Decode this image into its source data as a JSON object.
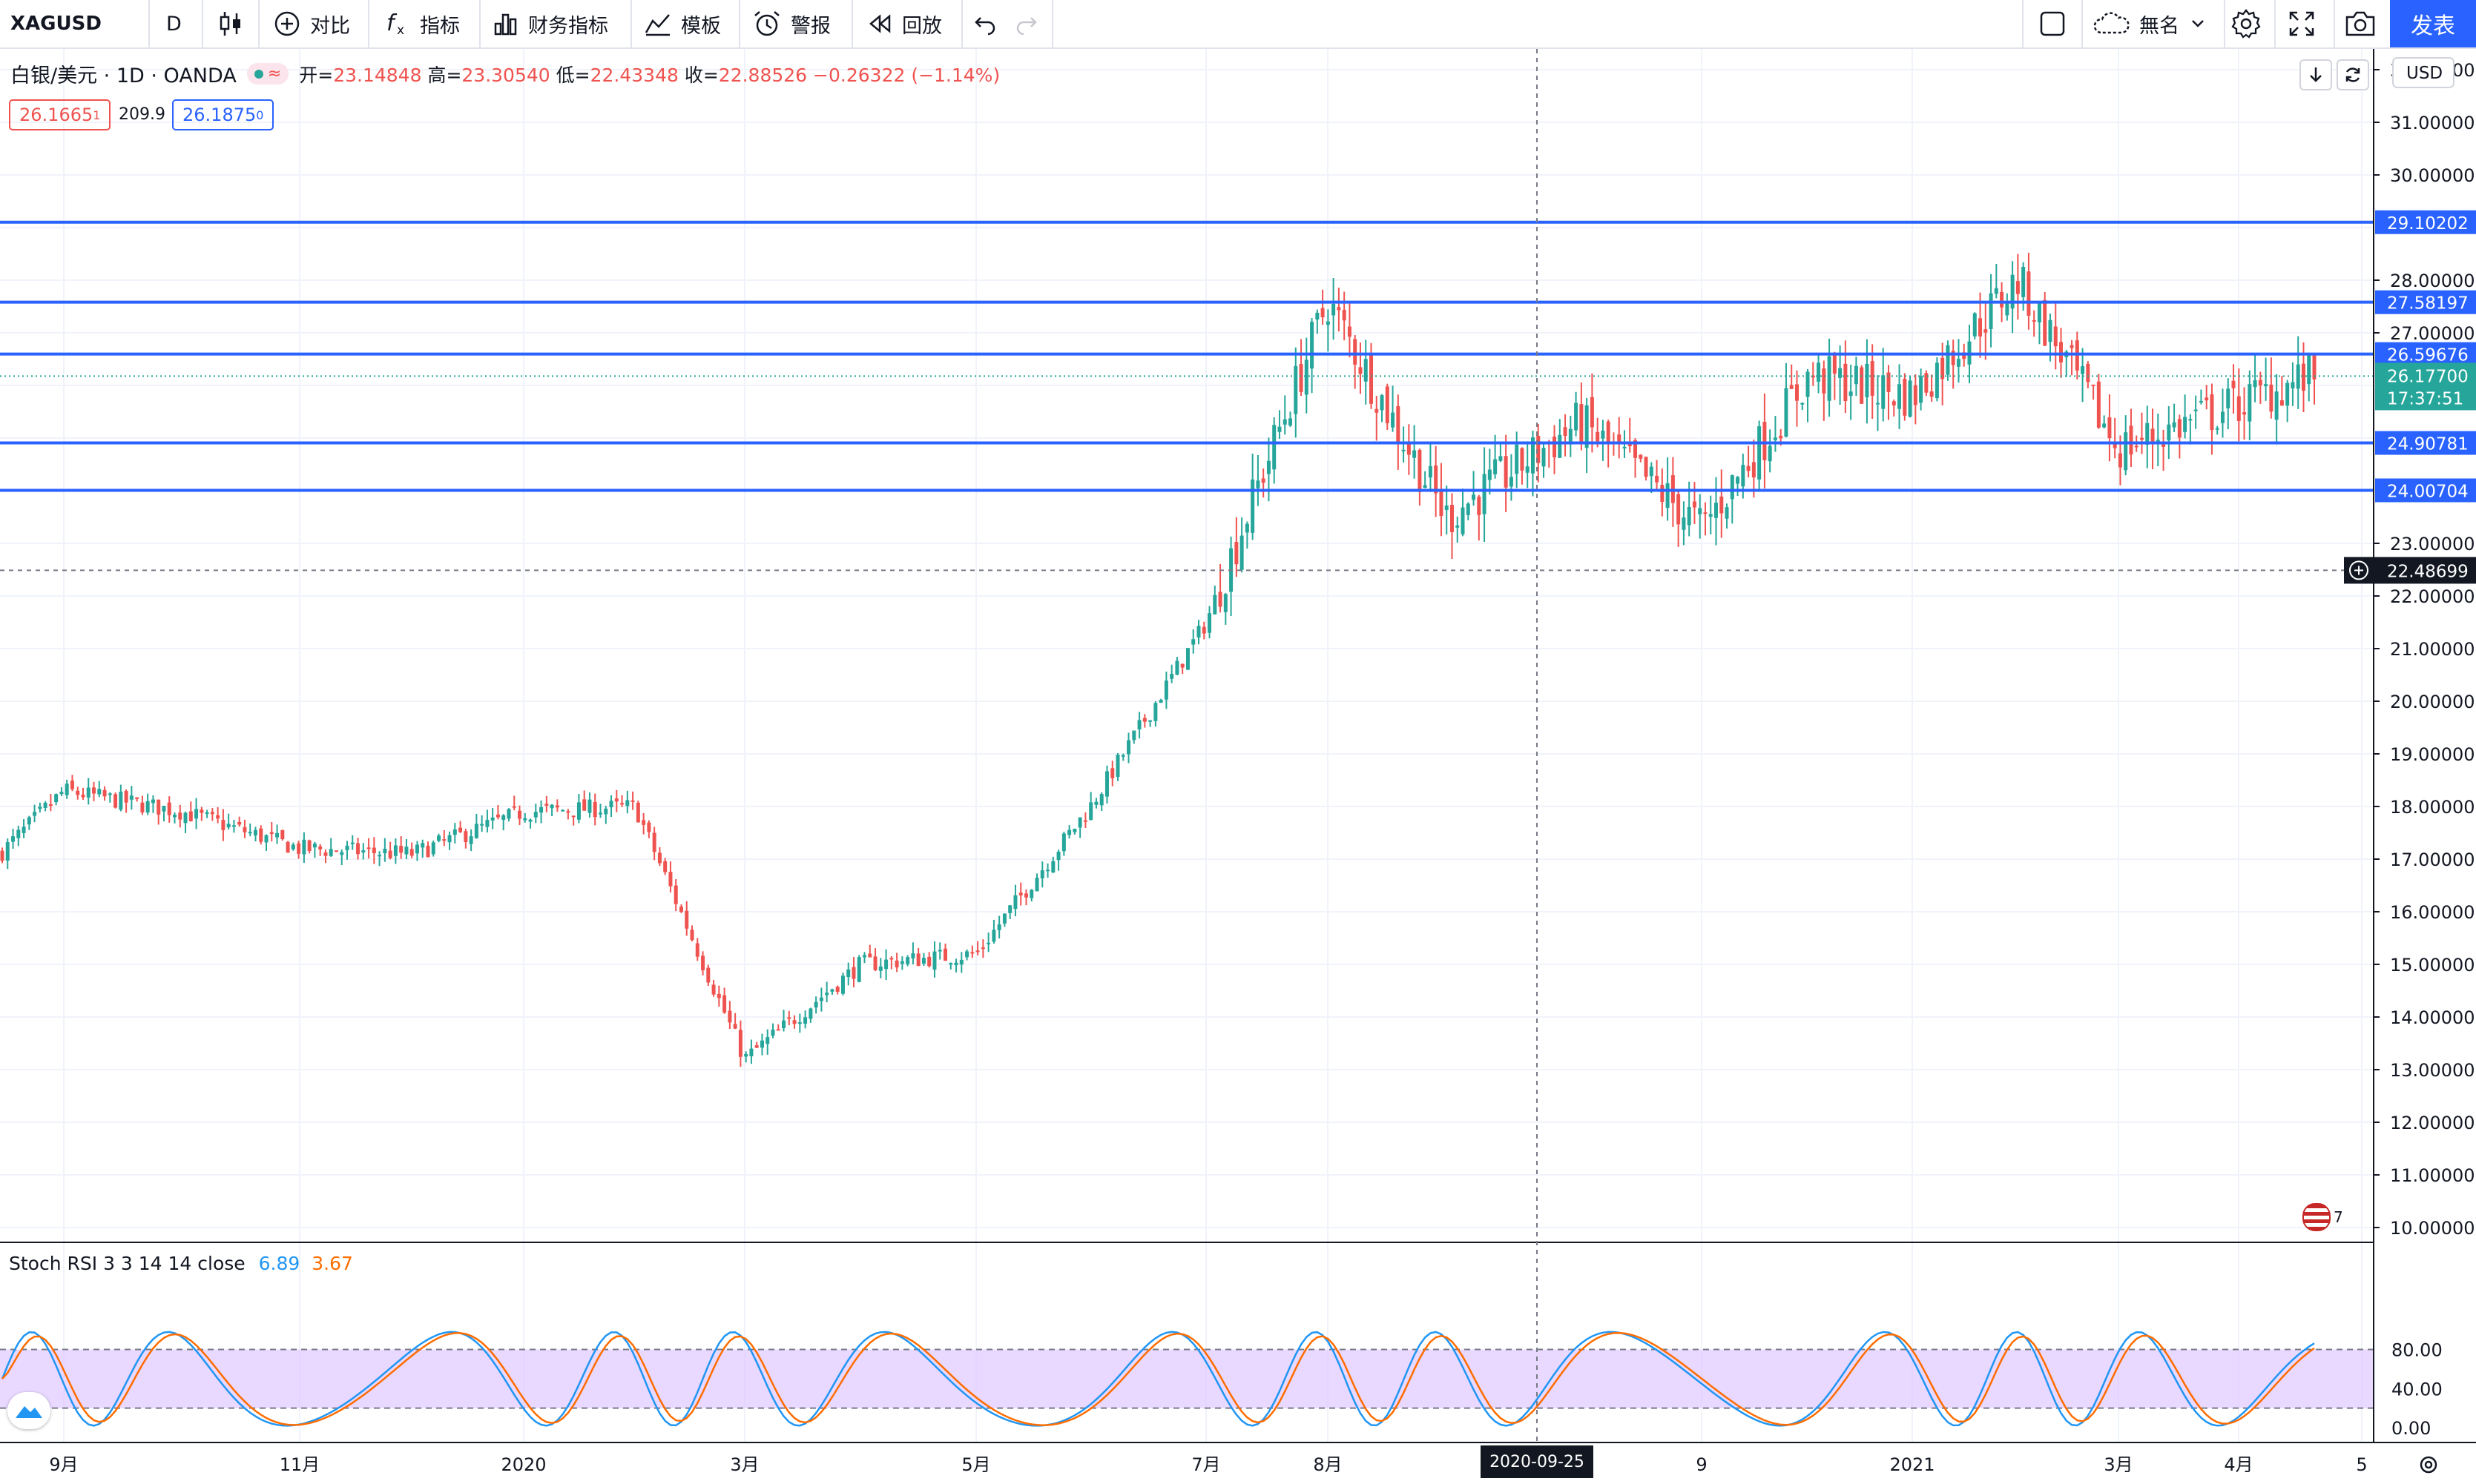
{
  "toolbar": {
    "symbol": "XAGUSD",
    "interval": "D",
    "compare_label": "对比",
    "indicators_label": "指标",
    "financials_label": "财务指标",
    "templates_label": "模板",
    "alert_label": "警报",
    "replay_label": "回放",
    "layout_name": "無名",
    "publish_label": "发表"
  },
  "legend": {
    "title": "白银/美元 · 1D · OANDA",
    "open_label": "开=",
    "open": "23.14848",
    "high_label": "高=",
    "high": "23.30540",
    "low_label": "低=",
    "low": "22.43348",
    "close_label": "收=",
    "close": "22.88526",
    "change": "−0.26322 (−1.14%)",
    "sell_price": "26.1665",
    "sell_small": "1",
    "spread": "209.9",
    "buy_price": "26.1875",
    "buy_small": "0"
  },
  "price_axis": {
    "currency": "USD",
    "ticks": [
      "32.00000",
      "31.00000",
      "30.00000",
      "28.00000",
      "27.00000",
      "23.00000",
      "22.00000",
      "21.00000",
      "20.00000",
      "19.00000",
      "18.00000",
      "17.00000",
      "16.00000",
      "15.00000",
      "14.00000",
      "13.00000",
      "12.00000",
      "11.00000",
      "10.00000"
    ],
    "level_labels": [
      "29.10202",
      "27.58197",
      "26.59676",
      "24.90781",
      "24.00704"
    ],
    "last_price": "26.17700",
    "countdown": "17:37:51",
    "crosshair_price": "22.48699"
  },
  "time_axis": {
    "labels": [
      "9月",
      "11月",
      "2020",
      "3月",
      "5月",
      "7月",
      "8月",
      "9",
      "2021",
      "3月",
      "4月",
      "5"
    ],
    "crosshair_date": "2020-09-25"
  },
  "stoch": {
    "label": "Stoch RSI 3 3 14 14 close",
    "k_value": "6.89",
    "d_value": "3.67",
    "ticks": [
      "80.00",
      "40.00",
      "0.00"
    ]
  },
  "events_badge": "7",
  "colors": {
    "up": "#26a69a",
    "down": "#ef5350",
    "hline": "#2962ff",
    "stoch_k": "#2196f3",
    "stoch_d": "#ff6d00",
    "stoch_band": "#e1cbff",
    "accent": "#2962ff"
  },
  "chart_data": {
    "type": "candlestick",
    "symbol": "XAGUSD",
    "interval": "1D",
    "ylim": [
      10,
      32
    ],
    "x": [
      "2019-08",
      "2019-09",
      "2019-10",
      "2019-11",
      "2019-12",
      "2020-01",
      "2020-02",
      "2020-03",
      "2020-04",
      "2020-05",
      "2020-06",
      "2020-07",
      "2020-08",
      "2020-09",
      "2020-10",
      "2020-11",
      "2020-12",
      "2021-01",
      "2021-02",
      "2021-03",
      "2021-04"
    ],
    "close": [
      17.1,
      18.3,
      17.9,
      17.2,
      17.1,
      17.9,
      18.0,
      13.2,
      15.0,
      15.2,
      18.0,
      21.5,
      27.6,
      23.5,
      25.3,
      23.3,
      26.2,
      25.8,
      28.0,
      24.8,
      26.2
    ],
    "horizontal_levels": [
      29.10202,
      27.58197,
      26.59676,
      24.90781,
      24.00704
    ],
    "stoch_rsi": {
      "k": 6.89,
      "d": 3.67
    }
  }
}
